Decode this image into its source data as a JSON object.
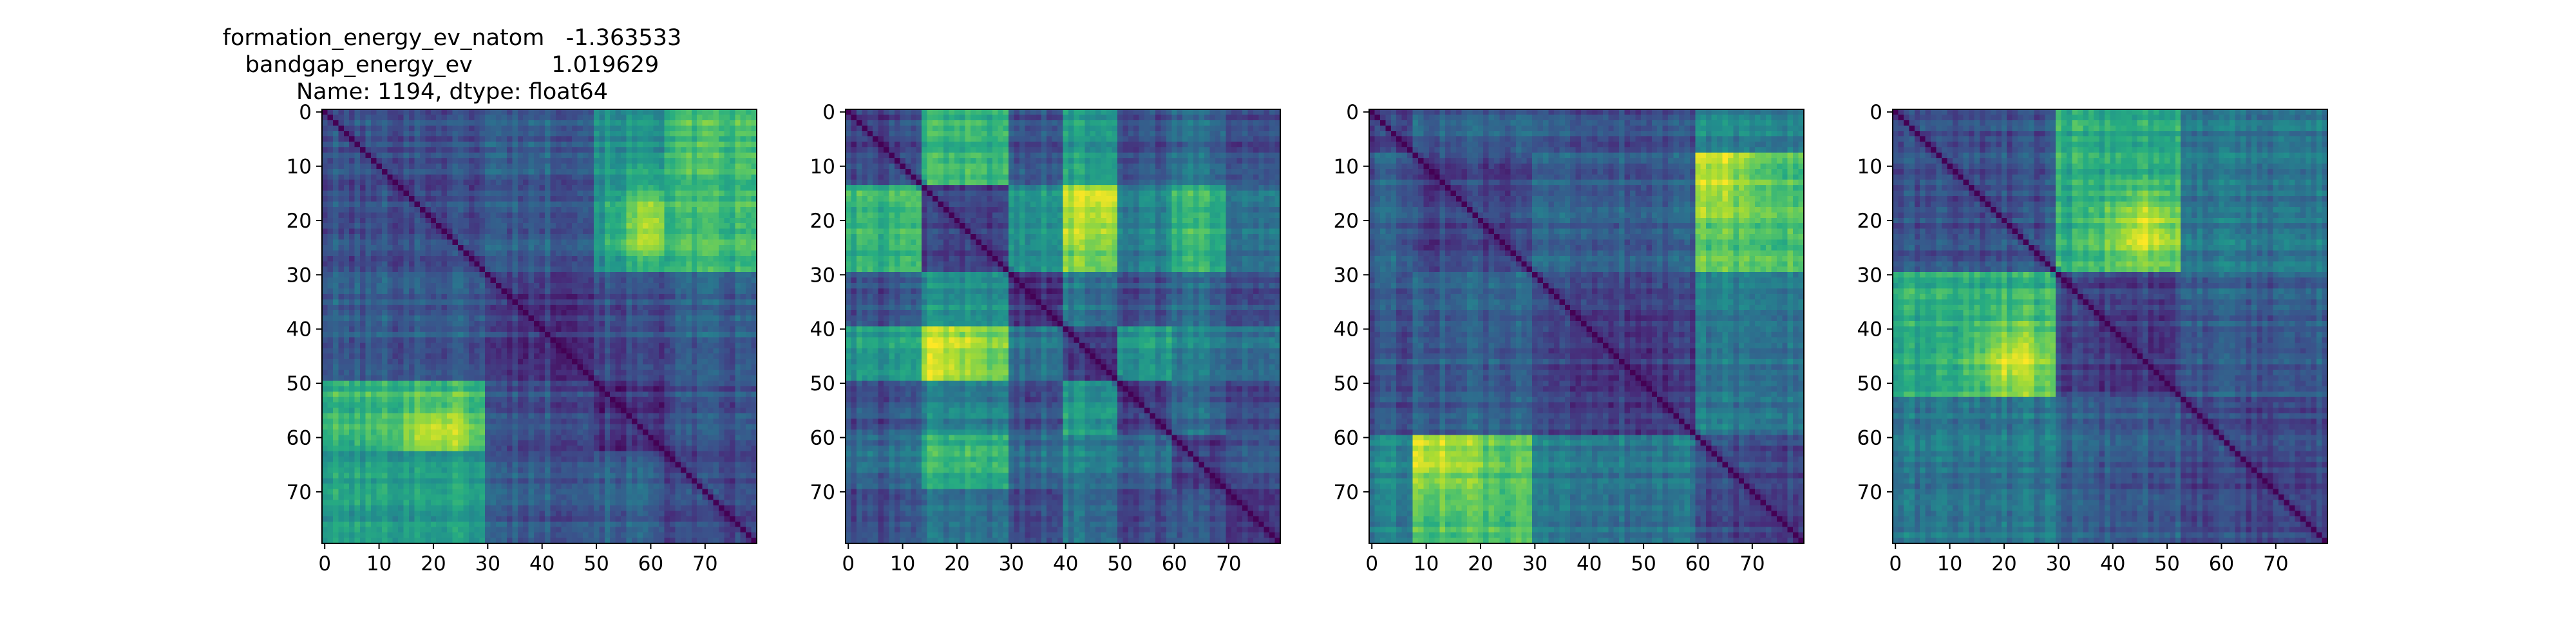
{
  "figure": {
    "title_lines": [
      "formation_energy_ev_natom   -1.363533",
      "bandgap_energy_ev           1.019629",
      "Name: 1194, dtype: float64"
    ]
  },
  "chart_data": [
    {
      "type": "heatmap",
      "colormap": "viridis",
      "size": 80,
      "xlim": [
        0,
        79
      ],
      "ylim": [
        79,
        0
      ],
      "xticks": [
        0,
        10,
        20,
        30,
        40,
        50,
        60,
        70
      ],
      "yticks": [
        0,
        10,
        20,
        30,
        40,
        50,
        60,
        70
      ],
      "blocks": [
        [
          0,
          30
        ],
        [
          30,
          50
        ],
        [
          50,
          63
        ],
        [
          63,
          80
        ]
      ],
      "block_values": [
        [
          0.25,
          0.3,
          0.5,
          0.68
        ],
        [
          0.3,
          0.18,
          0.25,
          0.3
        ],
        [
          0.65,
          0.25,
          0.15,
          0.25
        ],
        [
          0.55,
          0.28,
          0.3,
          0.2
        ]
      ],
      "peaks": [
        {
          "x": 21,
          "y": 61,
          "value": 0.93
        },
        {
          "x": 61,
          "y": 21,
          "value": 0.93
        }
      ]
    },
    {
      "type": "heatmap",
      "colormap": "viridis",
      "size": 80,
      "xlim": [
        0,
        79
      ],
      "ylim": [
        79,
        0
      ],
      "xticks": [
        0,
        10,
        20,
        30,
        40,
        50,
        60,
        70
      ],
      "yticks": [
        0,
        10,
        20,
        30,
        40,
        50,
        60,
        70
      ],
      "blocks": [
        [
          0,
          14
        ],
        [
          14,
          30
        ],
        [
          30,
          40
        ],
        [
          40,
          50
        ],
        [
          50,
          60
        ],
        [
          60,
          70
        ],
        [
          70,
          80
        ]
      ],
      "block_values": [
        [
          0.2,
          0.65,
          0.25,
          0.55,
          0.25,
          0.35,
          0.25
        ],
        [
          0.65,
          0.2,
          0.5,
          0.8,
          0.45,
          0.65,
          0.4
        ],
        [
          0.25,
          0.5,
          0.15,
          0.4,
          0.25,
          0.35,
          0.25
        ],
        [
          0.55,
          0.8,
          0.4,
          0.2,
          0.55,
          0.45,
          0.4
        ],
        [
          0.25,
          0.45,
          0.25,
          0.55,
          0.2,
          0.35,
          0.25
        ],
        [
          0.35,
          0.65,
          0.35,
          0.45,
          0.35,
          0.2,
          0.3
        ],
        [
          0.25,
          0.4,
          0.25,
          0.4,
          0.25,
          0.3,
          0.2
        ]
      ],
      "peaks": [
        {
          "x": 16,
          "y": 46,
          "value": 0.95
        },
        {
          "x": 46,
          "y": 16,
          "value": 0.95
        }
      ]
    },
    {
      "type": "heatmap",
      "colormap": "viridis",
      "size": 80,
      "xlim": [
        0,
        79
      ],
      "ylim": [
        79,
        0
      ],
      "xticks": [
        0,
        10,
        20,
        30,
        40,
        50,
        60,
        70
      ],
      "yticks": [
        0,
        10,
        20,
        30,
        40,
        50,
        60,
        70
      ],
      "blocks": [
        [
          0,
          8
        ],
        [
          8,
          30
        ],
        [
          30,
          60
        ],
        [
          60,
          80
        ]
      ],
      "block_values": [
        [
          0.2,
          0.3,
          0.25,
          0.45
        ],
        [
          0.3,
          0.2,
          0.3,
          0.72
        ],
        [
          0.25,
          0.3,
          0.18,
          0.4
        ],
        [
          0.45,
          0.72,
          0.4,
          0.22
        ]
      ],
      "peaks": [
        {
          "x": 11,
          "y": 63,
          "value": 0.92
        },
        {
          "x": 63,
          "y": 11,
          "value": 0.92
        }
      ]
    },
    {
      "type": "heatmap",
      "colormap": "viridis",
      "size": 80,
      "xlim": [
        0,
        79
      ],
      "ylim": [
        79,
        0
      ],
      "xticks": [
        0,
        10,
        20,
        30,
        40,
        50,
        60,
        70
      ],
      "yticks": [
        0,
        10,
        20,
        30,
        40,
        50,
        60,
        70
      ],
      "blocks": [
        [
          0,
          30
        ],
        [
          30,
          53
        ],
        [
          53,
          80
        ]
      ],
      "block_values": [
        [
          0.25,
          0.62,
          0.4
        ],
        [
          0.62,
          0.2,
          0.3
        ],
        [
          0.4,
          0.3,
          0.22
        ]
      ],
      "peaks": [
        {
          "x": 22,
          "y": 46,
          "value": 0.95
        },
        {
          "x": 46,
          "y": 22,
          "value": 0.95
        }
      ]
    }
  ]
}
